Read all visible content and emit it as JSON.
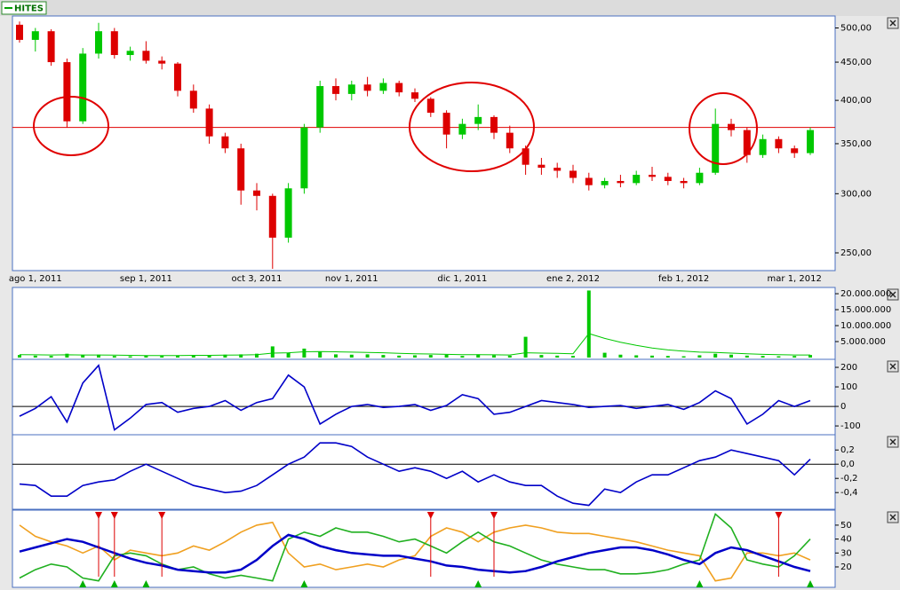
{
  "chart_data": [
    {
      "type": "candlestick",
      "name": "HITES",
      "log": true,
      "categories": [
        null,
        "ago 1, 2011",
        null,
        null,
        null,
        null,
        null,
        null,
        "sep 1, 2011",
        null,
        null,
        null,
        null,
        null,
        null,
        "oct 3, 2011",
        null,
        null,
        null,
        null,
        null,
        "nov 1, 2011",
        null,
        null,
        null,
        null,
        null,
        null,
        "dic 1, 2011",
        null,
        null,
        null,
        null,
        null,
        null,
        "ene 2, 2012",
        null,
        null,
        null,
        null,
        null,
        null,
        "feb 1, 2012",
        null,
        null,
        null,
        null,
        null,
        null,
        "mar 1, 2012",
        null
      ],
      "open": [
        505,
        482,
        495,
        450,
        375,
        462,
        495,
        460,
        466,
        452,
        448,
        412,
        390,
        358,
        345,
        303,
        298,
        262,
        305,
        368,
        418,
        408,
        420,
        412,
        422,
        410,
        402,
        385,
        360,
        372,
        380,
        362,
        345,
        328,
        325,
        322,
        315,
        308,
        312,
        310,
        318,
        316,
        312,
        310,
        320,
        372,
        365,
        338,
        355,
        345,
        340
      ],
      "high": [
        510,
        500,
        498,
        455,
        470,
        508,
        500,
        472,
        480,
        458,
        450,
        420,
        395,
        362,
        350,
        310,
        300,
        310,
        372,
        425,
        428,
        425,
        430,
        428,
        425,
        415,
        404,
        388,
        378,
        395,
        382,
        370,
        348,
        335,
        330,
        328,
        320,
        315,
        318,
        322,
        326,
        320,
        315,
        325,
        390,
        378,
        368,
        360,
        358,
        348,
        368
      ],
      "low": [
        478,
        465,
        445,
        368,
        372,
        455,
        455,
        452,
        448,
        440,
        405,
        385,
        350,
        340,
        290,
        285,
        238,
        258,
        300,
        362,
        400,
        400,
        405,
        408,
        405,
        398,
        380,
        345,
        355,
        365,
        355,
        340,
        318,
        318,
        315,
        310,
        303,
        305,
        306,
        308,
        312,
        308,
        305,
        308,
        318,
        358,
        330,
        335,
        340,
        335,
        338
      ],
      "close": [
        482,
        495,
        450,
        375,
        462,
        495,
        460,
        466,
        452,
        448,
        412,
        390,
        358,
        345,
        303,
        298,
        262,
        305,
        368,
        418,
        408,
        420,
        412,
        422,
        410,
        402,
        385,
        360,
        372,
        380,
        362,
        345,
        328,
        325,
        322,
        315,
        308,
        312,
        310,
        318,
        316,
        312,
        310,
        320,
        372,
        365,
        338,
        355,
        345,
        340,
        365
      ],
      "up_color": "#00c800",
      "down_color": "#dd0000",
      "ylim": [
        238,
        516
      ],
      "yticks": [
        {
          "value": 250,
          "label": "250,00"
        },
        {
          "value": 300,
          "label": "300,00"
        },
        {
          "value": 350,
          "label": "350,00"
        },
        {
          "value": 400,
          "label": "400,00"
        },
        {
          "value": 450,
          "label": "450,00"
        },
        {
          "value": 500,
          "label": "500,00"
        }
      ],
      "hline": {
        "value": 368,
        "color": "#e00000"
      }
    },
    {
      "type": "volume",
      "color": "#00c800",
      "ma_color": "#00c800",
      "values": [
        800000,
        600000,
        500000,
        1200000,
        700000,
        900000,
        500000,
        400000,
        600000,
        500000,
        700000,
        800000,
        600000,
        900000,
        1000000,
        1200000,
        3500000,
        1500000,
        2800000,
        1800000,
        1000000,
        900000,
        1000000,
        800000,
        600000,
        700000,
        800000,
        900000,
        500000,
        1000000,
        700000,
        600000,
        6500000,
        800000,
        600000,
        500000,
        21000000,
        1500000,
        900000,
        700000,
        600000,
        500000,
        400000,
        700000,
        1200000,
        900000,
        600000,
        500000,
        400000,
        500000,
        800000
      ],
      "ma": [
        900000,
        850000,
        800000,
        850000,
        800000,
        800000,
        750000,
        700000,
        650000,
        650000,
        650000,
        700000,
        700000,
        750000,
        800000,
        900000,
        1400000,
        1500000,
        1800000,
        1900000,
        1800000,
        1700000,
        1600000,
        1500000,
        1300000,
        1200000,
        1100000,
        1000000,
        900000,
        900000,
        850000,
        800000,
        1500000,
        1400000,
        1300000,
        1200000,
        7500000,
        6000000,
        4800000,
        3800000,
        3000000,
        2400000,
        2000000,
        1700000,
        1600000,
        1400000,
        1200000,
        1000000,
        900000,
        800000,
        800000
      ],
      "ylim": [
        0,
        21400000
      ],
      "yticks": [
        {
          "value": 5000000,
          "label": "5.000.000"
        },
        {
          "value": 10000000,
          "label": "10.000.000"
        },
        {
          "value": 15000000,
          "label": "15.000.000"
        },
        {
          "value": 20000000,
          "label": "20.000.000"
        }
      ]
    },
    {
      "type": "line",
      "series": [
        {
          "color": "#0000c8",
          "values": [
            -50,
            -10,
            50,
            -80,
            120,
            210,
            -120,
            -60,
            10,
            20,
            -30,
            -10,
            0,
            30,
            -20,
            20,
            40,
            160,
            100,
            -90,
            -40,
            0,
            10,
            -5,
            0,
            10,
            -20,
            5,
            60,
            40,
            -40,
            -30,
            0,
            30,
            20,
            10,
            -5,
            0,
            5,
            -10,
            0,
            10,
            -15,
            20,
            80,
            40,
            -90,
            -40,
            30,
            0,
            30
          ]
        }
      ],
      "ylim": [
        -136,
        232
      ],
      "yticks": [
        -100,
        0,
        100,
        200
      ],
      "hline": {
        "value": 0,
        "color": "#000000"
      }
    },
    {
      "type": "line",
      "series": [
        {
          "color": "#0000c8",
          "values": [
            -0.28,
            -0.3,
            -0.45,
            -0.45,
            -0.3,
            -0.25,
            -0.22,
            -0.1,
            0,
            -0.1,
            -0.2,
            -0.3,
            -0.35,
            -0.4,
            -0.38,
            -0.3,
            -0.15,
            0,
            0.1,
            0.3,
            0.3,
            0.25,
            0.1,
            0,
            -0.1,
            -0.05,
            -0.1,
            -0.2,
            -0.1,
            -0.25,
            -0.15,
            -0.25,
            -0.3,
            -0.3,
            -0.45,
            -0.55,
            -0.58,
            -0.35,
            -0.4,
            -0.25,
            -0.15,
            -0.15,
            -0.05,
            0.05,
            0.1,
            0.2,
            0.15,
            0.1,
            0.05,
            -0.15,
            0.07
          ]
        }
      ],
      "ylim": [
        -0.61,
        0.39
      ],
      "yticks": [
        {
          "value": -0.4,
          "label": "-0,4"
        },
        {
          "value": -0.2,
          "label": "-0,2"
        },
        {
          "value": 0,
          "label": "0,0"
        },
        {
          "value": 0.2,
          "label": "0,2"
        }
      ],
      "hline": {
        "value": 0,
        "color": "#000000"
      }
    },
    {
      "type": "line",
      "series": [
        {
          "color": "#f0a020",
          "values": [
            50,
            42,
            38,
            35,
            30,
            35,
            25,
            32,
            30,
            28,
            30,
            35,
            32,
            38,
            45,
            50,
            52,
            30,
            20,
            22,
            18,
            20,
            22,
            20,
            25,
            28,
            42,
            48,
            45,
            38,
            45,
            48,
            50,
            48,
            45,
            44,
            44,
            42,
            40,
            38,
            35,
            32,
            30,
            28,
            10,
            12,
            30,
            30,
            28,
            30,
            25
          ]
        },
        {
          "color": "#20b020",
          "values": [
            12,
            18,
            22,
            20,
            12,
            10,
            28,
            30,
            28,
            22,
            18,
            20,
            15,
            12,
            14,
            12,
            10,
            40,
            45,
            42,
            48,
            45,
            45,
            42,
            38,
            40,
            35,
            30,
            38,
            45,
            38,
            35,
            30,
            25,
            22,
            20,
            18,
            18,
            15,
            15,
            16,
            18,
            22,
            25,
            58,
            48,
            25,
            22,
            20,
            28,
            40
          ]
        },
        {
          "color": "#0000c8",
          "width": 2.5,
          "values": [
            31,
            34,
            37,
            40,
            38,
            34,
            30,
            26,
            23,
            21,
            18,
            17,
            16,
            16,
            18,
            25,
            35,
            43,
            40,
            35,
            32,
            30,
            29,
            28,
            28,
            26,
            24,
            21,
            20,
            18,
            17,
            16,
            17,
            20,
            24,
            27,
            30,
            32,
            34,
            34,
            32,
            29,
            25,
            22,
            30,
            34,
            32,
            28,
            24,
            20,
            17
          ]
        }
      ],
      "sell_signals": [
        5,
        6,
        9,
        26,
        30,
        48
      ],
      "buy_signals": [
        4,
        6,
        8,
        18,
        29,
        43,
        50
      ],
      "sell_color": "#dd0000",
      "buy_color": "#00b000",
      "ylim": [
        6.6,
        59.5
      ],
      "yticks": [
        20,
        30,
        40,
        50
      ]
    }
  ]
}
